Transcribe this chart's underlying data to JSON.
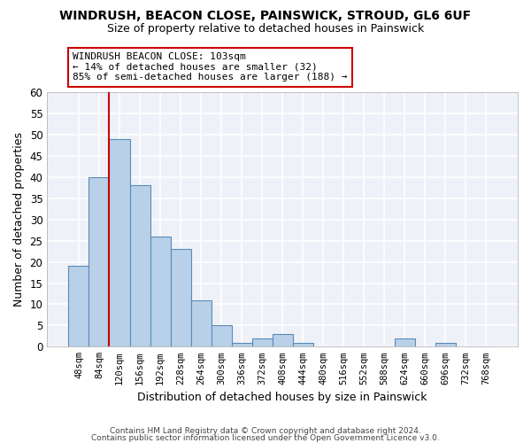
{
  "title": "WINDRUSH, BEACON CLOSE, PAINSWICK, STROUD, GL6 6UF",
  "subtitle": "Size of property relative to detached houses in Painswick",
  "xlabel": "Distribution of detached houses by size in Painswick",
  "ylabel": "Number of detached properties",
  "bar_color": "#b8d0e8",
  "bar_edgecolor": "#5a8ab8",
  "background_color": "#eef2f8",
  "grid_color": "#ffffff",
  "bin_labels": [
    "48sqm",
    "84sqm",
    "120sqm",
    "156sqm",
    "192sqm",
    "228sqm",
    "264sqm",
    "300sqm",
    "336sqm",
    "372sqm",
    "408sqm",
    "444sqm",
    "480sqm",
    "516sqm",
    "552sqm",
    "588sqm",
    "624sqm",
    "660sqm",
    "696sqm",
    "732sqm",
    "768sqm"
  ],
  "bar_heights": [
    19,
    40,
    49,
    38,
    26,
    23,
    11,
    5,
    1,
    2,
    3,
    1,
    0,
    0,
    0,
    0,
    2,
    0,
    1,
    0,
    0
  ],
  "ylim": [
    0,
    60
  ],
  "yticks": [
    0,
    5,
    10,
    15,
    20,
    25,
    30,
    35,
    40,
    45,
    50,
    55,
    60
  ],
  "annotation_text": "WINDRUSH BEACON CLOSE: 103sqm\n← 14% of detached houses are smaller (32)\n85% of semi-detached houses are larger (188) →",
  "annotation_box_color": "#ffffff",
  "annotation_box_edgecolor": "#cc0000",
  "property_line_color": "#cc0000",
  "footer1": "Contains HM Land Registry data © Crown copyright and database right 2024.",
  "footer2": "Contains public sector information licensed under the Open Government Licence v3.0."
}
